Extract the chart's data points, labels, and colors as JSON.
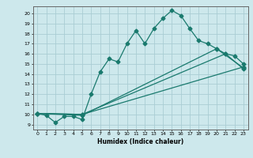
{
  "xlabel": "Humidex (Indice chaleur)",
  "bg_color": "#cde8ec",
  "grid_color": "#aacdd4",
  "line_color": "#1a7a6e",
  "xlim": [
    -0.5,
    23.5
  ],
  "ylim": [
    8.5,
    20.7
  ],
  "yticks": [
    9,
    10,
    11,
    12,
    13,
    14,
    15,
    16,
    17,
    18,
    19,
    20
  ],
  "xticks": [
    0,
    1,
    2,
    3,
    4,
    5,
    6,
    7,
    8,
    9,
    10,
    11,
    12,
    13,
    14,
    15,
    16,
    17,
    18,
    19,
    20,
    21,
    22,
    23
  ],
  "curve1_x": [
    0,
    1,
    2,
    3,
    4,
    5,
    6,
    7,
    8,
    9,
    10,
    11,
    12,
    13,
    14,
    15,
    16,
    17,
    18,
    19,
    20,
    21,
    22,
    23
  ],
  "curve1_y": [
    10.1,
    9.9,
    9.2,
    9.8,
    9.8,
    9.5,
    12.0,
    14.2,
    15.5,
    15.2,
    17.0,
    18.3,
    17.0,
    18.5,
    19.5,
    20.3,
    19.8,
    18.5,
    17.3,
    17.0,
    16.5,
    16.0,
    15.8,
    15.0
  ],
  "curve2_x": [
    0,
    5,
    21,
    23
  ],
  "curve2_y": [
    10.1,
    10.0,
    16.0,
    14.5
  ],
  "curve3_x": [
    0,
    5,
    23
  ],
  "curve3_y": [
    10.1,
    10.0,
    14.7
  ],
  "curve4_x": [
    0,
    5,
    20,
    23
  ],
  "curve4_y": [
    10.1,
    9.9,
    16.5,
    14.6
  ]
}
